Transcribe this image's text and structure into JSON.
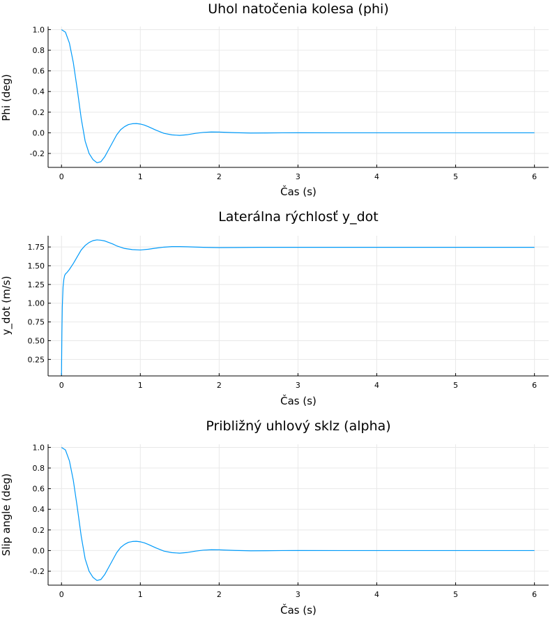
{
  "colors": {
    "series": "#009af9",
    "background": "#ffffff",
    "axis": "#000000",
    "grid": "#e8e8e8"
  },
  "chart_data": [
    {
      "type": "line",
      "title": "Uhol natočenia kolesa (phi)",
      "xlabel": "Čas (s)",
      "ylabel": "Phi (deg)",
      "xlim": [
        -0.17,
        6.18
      ],
      "ylim": [
        -0.335,
        1.03
      ],
      "xticks": [
        0,
        1,
        2,
        3,
        4,
        5,
        6
      ],
      "xtick_labels": [
        "0",
        "1",
        "2",
        "3",
        "4",
        "5",
        "6"
      ],
      "yticks": [
        -0.2,
        0.0,
        0.2,
        0.4,
        0.6,
        0.8,
        1.0
      ],
      "ytick_labels": [
        "-0.2",
        "0.0",
        "0.2",
        "0.4",
        "0.6",
        "0.8",
        "1.0"
      ],
      "grid": true,
      "legend": "none",
      "series": [
        {
          "name": "phi",
          "x": [
            0,
            0.05,
            0.1,
            0.15,
            0.2,
            0.25,
            0.3,
            0.35,
            0.4,
            0.45,
            0.5,
            0.55,
            0.6,
            0.65,
            0.7,
            0.75,
            0.8,
            0.85,
            0.9,
            0.95,
            1.0,
            1.05,
            1.1,
            1.2,
            1.3,
            1.4,
            1.5,
            1.6,
            1.7,
            1.8,
            1.9,
            2.0,
            2.2,
            2.4,
            2.6,
            2.8,
            3.0,
            3.5,
            4.0,
            4.5,
            5.0,
            5.5,
            6.0
          ],
          "values": [
            1.0,
            0.975,
            0.87,
            0.68,
            0.42,
            0.14,
            -0.08,
            -0.2,
            -0.26,
            -0.29,
            -0.28,
            -0.23,
            -0.16,
            -0.09,
            -0.02,
            0.03,
            0.06,
            0.08,
            0.088,
            0.09,
            0.085,
            0.075,
            0.06,
            0.025,
            -0.005,
            -0.02,
            -0.025,
            -0.018,
            -0.005,
            0.004,
            0.008,
            0.007,
            0.001,
            -0.002,
            -0.0015,
            0.0,
            0.0005,
            0.0,
            0.0,
            0.0,
            0.0,
            0.0,
            0.0
          ]
        }
      ]
    },
    {
      "type": "line",
      "title": "Laterálna rýchlosť y_dot",
      "xlabel": "Čas (s)",
      "ylabel": "y_dot (m/s)",
      "xlim": [
        -0.17,
        6.18
      ],
      "ylim": [
        0.03,
        1.9
      ],
      "xticks": [
        0,
        1,
        2,
        3,
        4,
        5,
        6
      ],
      "xtick_labels": [
        "0",
        "1",
        "2",
        "3",
        "4",
        "5",
        "6"
      ],
      "yticks": [
        0.25,
        0.5,
        0.75,
        1.0,
        1.25,
        1.5,
        1.75
      ],
      "ytick_labels": [
        "0.25",
        "0.50",
        "0.75",
        "1.00",
        "1.25",
        "1.50",
        "1.75"
      ],
      "grid": true,
      "legend": "none",
      "series": [
        {
          "name": "y_dot",
          "x": [
            0,
            0.005,
            0.01,
            0.02,
            0.03,
            0.04,
            0.05,
            0.07,
            0.1,
            0.15,
            0.2,
            0.25,
            0.3,
            0.35,
            0.4,
            0.45,
            0.5,
            0.55,
            0.6,
            0.65,
            0.7,
            0.8,
            0.9,
            1.0,
            1.1,
            1.2,
            1.3,
            1.4,
            1.5,
            1.6,
            1.8,
            2.0,
            2.2,
            2.5,
            3.0,
            3.5,
            4.0,
            4.5,
            5.0,
            5.5,
            6.0
          ],
          "values": [
            0.04,
            0.6,
            0.95,
            1.22,
            1.32,
            1.37,
            1.39,
            1.41,
            1.45,
            1.53,
            1.62,
            1.71,
            1.77,
            1.81,
            1.835,
            1.845,
            1.84,
            1.83,
            1.81,
            1.79,
            1.765,
            1.73,
            1.715,
            1.71,
            1.72,
            1.735,
            1.748,
            1.755,
            1.755,
            1.752,
            1.745,
            1.742,
            1.743,
            1.745,
            1.745,
            1.745,
            1.745,
            1.745,
            1.745,
            1.745,
            1.745
          ]
        }
      ]
    },
    {
      "type": "line",
      "title": "Približný uhlový sklz (alpha)",
      "xlabel": "Čas (s)",
      "ylabel": "Slip angle (deg)",
      "xlim": [
        -0.17,
        6.18
      ],
      "ylim": [
        -0.335,
        1.03
      ],
      "xticks": [
        0,
        1,
        2,
        3,
        4,
        5,
        6
      ],
      "xtick_labels": [
        "0",
        "1",
        "2",
        "3",
        "4",
        "5",
        "6"
      ],
      "yticks": [
        -0.2,
        0.0,
        0.2,
        0.4,
        0.6,
        0.8,
        1.0
      ],
      "ytick_labels": [
        "-0.2",
        "0.0",
        "0.2",
        "0.4",
        "0.6",
        "0.8",
        "1.0"
      ],
      "grid": true,
      "legend": "none",
      "series": [
        {
          "name": "alpha",
          "x": [
            0,
            0.05,
            0.1,
            0.15,
            0.2,
            0.25,
            0.3,
            0.35,
            0.4,
            0.45,
            0.5,
            0.55,
            0.6,
            0.65,
            0.7,
            0.75,
            0.8,
            0.85,
            0.9,
            0.95,
            1.0,
            1.05,
            1.1,
            1.2,
            1.3,
            1.4,
            1.5,
            1.6,
            1.7,
            1.8,
            1.9,
            2.0,
            2.2,
            2.4,
            2.6,
            2.8,
            3.0,
            3.5,
            4.0,
            4.5,
            5.0,
            5.5,
            6.0
          ],
          "values": [
            1.0,
            0.975,
            0.87,
            0.68,
            0.42,
            0.14,
            -0.08,
            -0.2,
            -0.26,
            -0.29,
            -0.28,
            -0.23,
            -0.16,
            -0.09,
            -0.02,
            0.03,
            0.06,
            0.08,
            0.088,
            0.09,
            0.085,
            0.075,
            0.06,
            0.025,
            -0.005,
            -0.02,
            -0.025,
            -0.018,
            -0.005,
            0.004,
            0.008,
            0.007,
            0.001,
            -0.002,
            -0.0015,
            0.0,
            0.0005,
            0.0,
            0.0,
            0.0,
            0.0,
            0.0,
            0.0
          ]
        }
      ]
    }
  ]
}
